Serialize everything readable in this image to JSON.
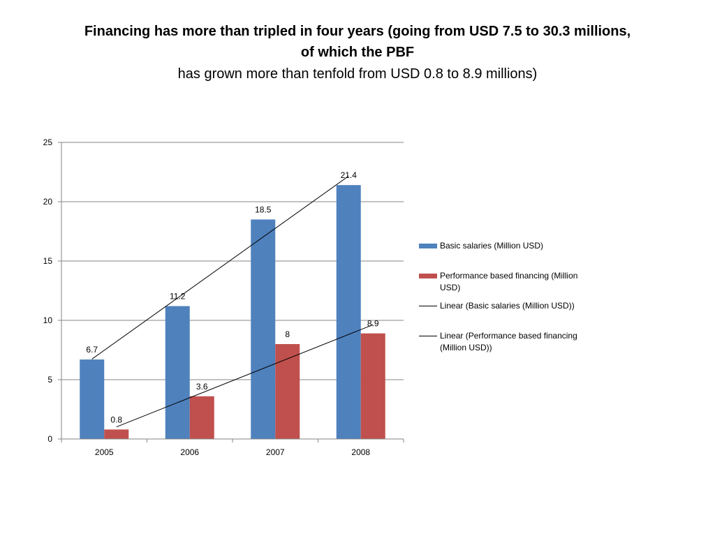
{
  "title": {
    "line1": "Financing has more than tripled in four years (going from USD 7.5 to 30.3 millions,",
    "line2": "of which the PBF",
    "line3": "has grown more than tenfold from USD 0.8 to 8.9 millions)"
  },
  "chart_data": {
    "type": "bar",
    "categories": [
      "2005",
      "2006",
      "2007",
      "2008"
    ],
    "series": [
      {
        "name": "Basic salaries (Million USD)",
        "values": [
          6.7,
          11.2,
          18.5,
          21.4
        ],
        "labels": [
          "6.7",
          "11.2",
          "18.5",
          "21.4"
        ],
        "color": "#4F81BD"
      },
      {
        "name": "Performance based financing (Million USD)",
        "values": [
          0.8,
          3.6,
          8,
          8.9
        ],
        "labels": [
          "0.8",
          "3.6",
          "8",
          "8.9"
        ],
        "color": "#C0504D"
      }
    ],
    "trendlines": [
      {
        "name": "Linear (Basic salaries (Million USD))",
        "series": 0,
        "color": "#000000"
      },
      {
        "name": "Linear (Performance based financing (Million USD))",
        "series": 1,
        "color": "#000000"
      }
    ],
    "ylim": [
      0,
      25
    ],
    "yticks": [
      "0",
      "5",
      "10",
      "15",
      "20",
      "25"
    ],
    "grid": true,
    "legend_position": "right",
    "xlabel": "",
    "ylabel": ""
  }
}
